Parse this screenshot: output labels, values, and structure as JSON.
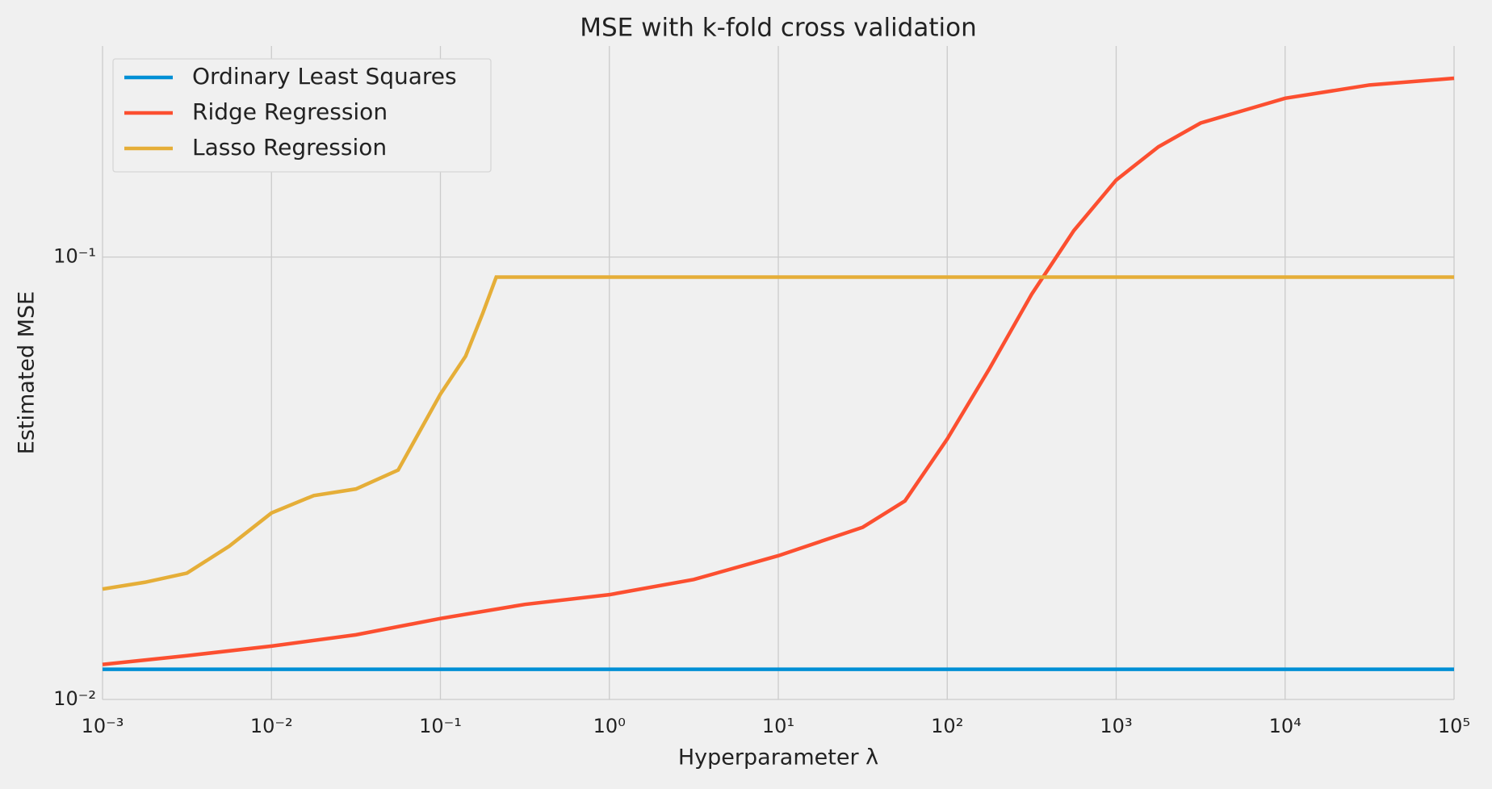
{
  "chart_data": {
    "type": "line",
    "title": "MSE with k-fold cross validation",
    "x_label": "Hyperparameter λ",
    "y_label": "Estimated MSE",
    "x_scale": "log",
    "y_scale": "log",
    "grid": true,
    "legend": "upper left",
    "xlim": [
      0.001,
      100000
    ],
    "ylim": [
      0.01,
      0.3
    ],
    "xticks": [
      {
        "value": 0.001,
        "label": "10⁻³"
      },
      {
        "value": 0.01,
        "label": "10⁻²"
      },
      {
        "value": 0.1,
        "label": "10⁻¹"
      },
      {
        "value": 1,
        "label": "10⁰"
      },
      {
        "value": 10,
        "label": "10¹"
      },
      {
        "value": 100,
        "label": "10²"
      },
      {
        "value": 1000,
        "label": "10³"
      },
      {
        "value": 10000,
        "label": "10⁴"
      },
      {
        "value": 100000,
        "label": "10⁵"
      }
    ],
    "yticks": [
      {
        "value": 0.01,
        "label": "10⁻²"
      },
      {
        "value": 0.1,
        "label": "10⁻¹"
      }
    ],
    "series": [
      {
        "name": "Ordinary Least Squares",
        "color": "#008fd5",
        "x": [
          0.001,
          100000
        ],
        "values": [
          0.0117,
          0.0117
        ]
      },
      {
        "name": "Ridge Regression",
        "color": "#fc4f30",
        "x": [
          0.001,
          0.00316,
          0.01,
          0.0316,
          0.1,
          0.316,
          1,
          3.16,
          10,
          31.6,
          56.2,
          100,
          178,
          316,
          562,
          1000,
          1778,
          3162,
          10000,
          31623,
          100000
        ],
        "values": [
          0.012,
          0.01256,
          0.0132,
          0.014,
          0.01524,
          0.0164,
          0.01725,
          0.01867,
          0.02113,
          0.0245,
          0.0281,
          0.0388,
          0.056,
          0.0824,
          0.1148,
          0.1493,
          0.1775,
          0.2009,
          0.2285,
          0.2449,
          0.2536
        ]
      },
      {
        "name": "Lasso Regression",
        "color": "#e5ae38",
        "x": [
          0.001,
          0.00178,
          0.00316,
          0.00562,
          0.01,
          0.0178,
          0.0316,
          0.0562,
          0.1,
          0.141,
          0.178,
          0.214,
          100000
        ],
        "values": [
          0.01776,
          0.0184,
          0.0193,
          0.0222,
          0.0264,
          0.0289,
          0.0299,
          0.033,
          0.049,
          0.0597,
          0.0746,
          0.0901,
          0.0901
        ]
      }
    ]
  }
}
